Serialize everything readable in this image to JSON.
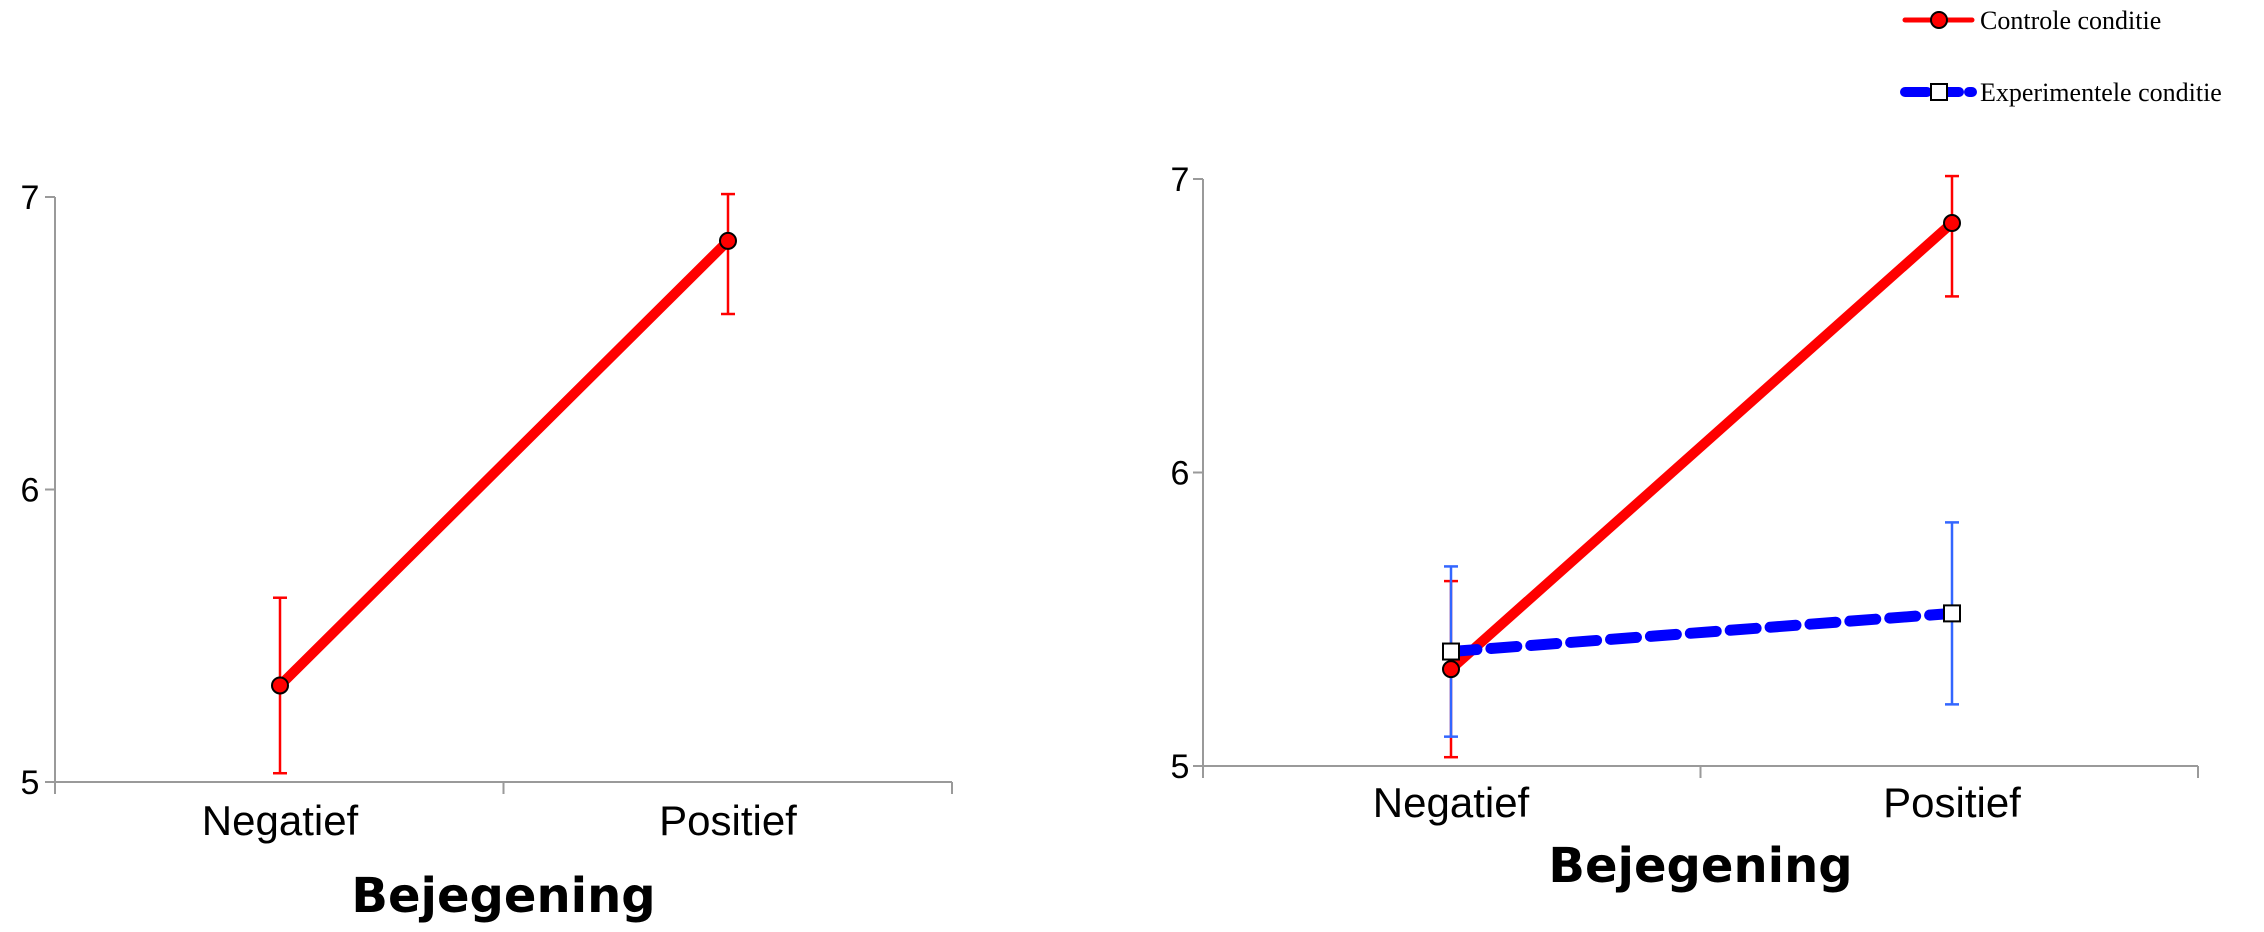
{
  "chart_data": [
    {
      "type": "line",
      "xlabel": "Bejegening",
      "categories": [
        "Negatief",
        "Positief"
      ],
      "ylim": [
        5,
        7
      ],
      "yticks": [
        "5",
        "6",
        "7"
      ],
      "grid": false,
      "series": [
        {
          "values": [
            5.33,
            6.85
          ],
          "errors": [
            [
              5.03,
              5.63
            ],
            [
              6.6,
              7.01
            ]
          ],
          "color": "#ff0000",
          "line_style": "solid",
          "marker": "circle"
        }
      ]
    },
    {
      "type": "line",
      "xlabel": "Bejegening",
      "categories": [
        "Negatief",
        "Positief"
      ],
      "ylim": [
        5,
        7
      ],
      "yticks": [
        "5",
        "6",
        "7"
      ],
      "grid": false,
      "legend_position": "top-right",
      "series": [
        {
          "name": "Controle conditie",
          "values": [
            5.33,
            6.85
          ],
          "errors": [
            [
              5.03,
              5.63
            ],
            [
              6.6,
              7.01
            ]
          ],
          "color": "#ff0000",
          "error_color": "#ff0000",
          "line_style": "solid",
          "marker": "circle"
        },
        {
          "name": "Experimentele conditie",
          "values": [
            5.39,
            5.52
          ],
          "errors": [
            [
              5.1,
              5.68
            ],
            [
              5.21,
              5.83
            ]
          ],
          "color": "#0000ff",
          "error_color": "#3366ff",
          "line_style": "dashed",
          "marker": "square"
        }
      ]
    }
  ]
}
